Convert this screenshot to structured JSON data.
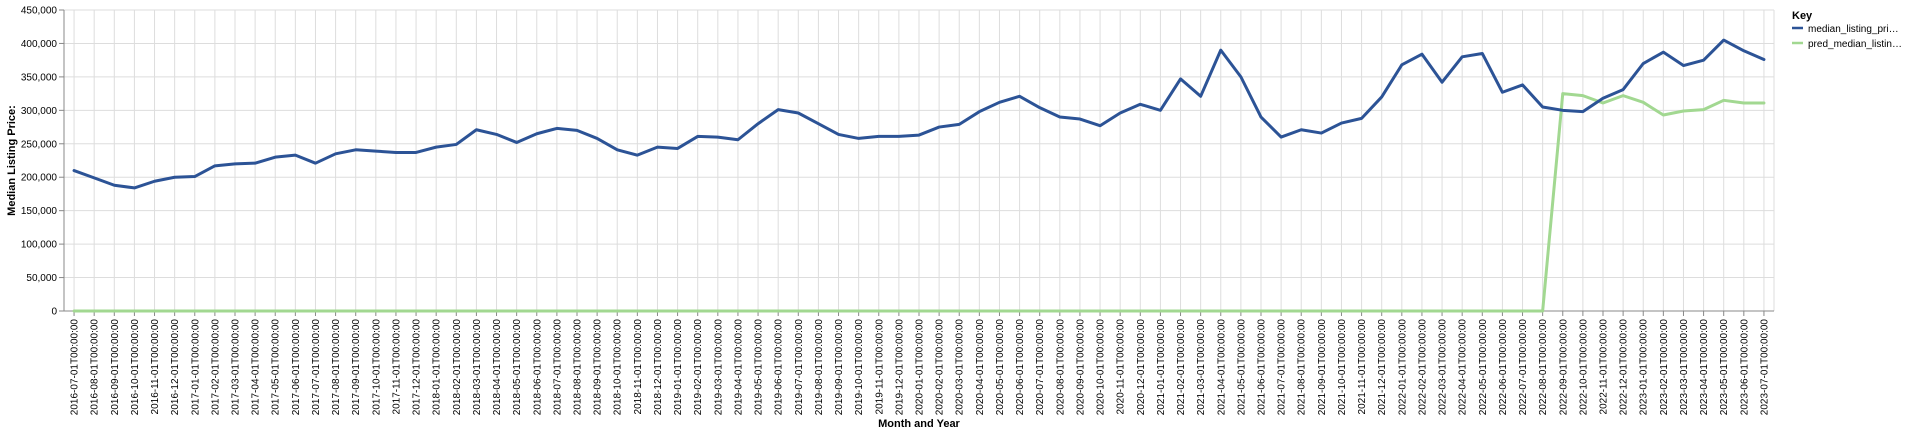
{
  "chart_data": {
    "type": "line",
    "xlabel": "Month and Year",
    "ylabel": "Median Listing Price:",
    "ylim": [
      0,
      450000
    ],
    "y_ticks": [
      "0",
      "50,000",
      "100,000",
      "150,000",
      "200,000",
      "250,000",
      "300,000",
      "350,000",
      "400,000",
      "450,000"
    ],
    "grid": true,
    "legend": {
      "title": "Key",
      "placement": "right",
      "entries": [
        "median_listing_pri…",
        "pred_median_listin…"
      ]
    },
    "x": [
      "2016-07-01T00:00:00",
      "2016-08-01T00:00:00",
      "2016-09-01T00:00:00",
      "2016-10-01T00:00:00",
      "2016-11-01T00:00:00",
      "2016-12-01T00:00:00",
      "2017-01-01T00:00:00",
      "2017-02-01T00:00:00",
      "2017-03-01T00:00:00",
      "2017-04-01T00:00:00",
      "2017-05-01T00:00:00",
      "2017-06-01T00:00:00",
      "2017-07-01T00:00:00",
      "2017-08-01T00:00:00",
      "2017-09-01T00:00:00",
      "2017-10-01T00:00:00",
      "2017-11-01T00:00:00",
      "2017-12-01T00:00:00",
      "2018-01-01T00:00:00",
      "2018-02-01T00:00:00",
      "2018-03-01T00:00:00",
      "2018-04-01T00:00:00",
      "2018-05-01T00:00:00",
      "2018-06-01T00:00:00",
      "2018-07-01T00:00:00",
      "2018-08-01T00:00:00",
      "2018-09-01T00:00:00",
      "2018-10-01T00:00:00",
      "2018-11-01T00:00:00",
      "2018-12-01T00:00:00",
      "2019-01-01T00:00:00",
      "2019-02-01T00:00:00",
      "2019-03-01T00:00:00",
      "2019-04-01T00:00:00",
      "2019-05-01T00:00:00",
      "2019-06-01T00:00:00",
      "2019-07-01T00:00:00",
      "2019-08-01T00:00:00",
      "2019-09-01T00:00:00",
      "2019-10-01T00:00:00",
      "2019-11-01T00:00:00",
      "2019-12-01T00:00:00",
      "2020-01-01T00:00:00",
      "2020-02-01T00:00:00",
      "2020-03-01T00:00:00",
      "2020-04-01T00:00:00",
      "2020-05-01T00:00:00",
      "2020-06-01T00:00:00",
      "2020-07-01T00:00:00",
      "2020-08-01T00:00:00",
      "2020-09-01T00:00:00",
      "2020-10-01T00:00:00",
      "2020-11-01T00:00:00",
      "2020-12-01T00:00:00",
      "2021-01-01T00:00:00",
      "2021-02-01T00:00:00",
      "2021-03-01T00:00:00",
      "2021-04-01T00:00:00",
      "2021-05-01T00:00:00",
      "2021-06-01T00:00:00",
      "2021-07-01T00:00:00",
      "2021-08-01T00:00:00",
      "2021-09-01T00:00:00",
      "2021-10-01T00:00:00",
      "2021-11-01T00:00:00",
      "2021-12-01T00:00:00",
      "2022-01-01T00:00:00",
      "2022-02-01T00:00:00",
      "2022-03-01T00:00:00",
      "2022-04-01T00:00:00",
      "2022-05-01T00:00:00",
      "2022-06-01T00:00:00",
      "2022-07-01T00:00:00",
      "2022-08-01T00:00:00",
      "2022-09-01T00:00:00",
      "2022-10-01T00:00:00",
      "2022-11-01T00:00:00",
      "2022-12-01T00:00:00",
      "2023-01-01T00:00:00",
      "2023-02-01T00:00:00",
      "2023-03-01T00:00:00",
      "2023-04-01T00:00:00",
      "2023-05-01T00:00:00",
      "2023-06-01T00:00:00",
      "2023-07-01T00:00:00"
    ],
    "series": [
      {
        "name": "median_listing_pri…",
        "color": "#2c5396",
        "values": [
          210000,
          199000,
          188000,
          184000,
          194000,
          200000,
          201000,
          217000,
          220000,
          221000,
          230000,
          233000,
          221000,
          235000,
          241000,
          239000,
          237000,
          237000,
          245000,
          249000,
          271000,
          264000,
          252000,
          265000,
          273000,
          270000,
          258000,
          241000,
          233000,
          245000,
          243000,
          261000,
          260000,
          256000,
          280000,
          301000,
          296000,
          280000,
          264000,
          258000,
          261000,
          261000,
          263000,
          275000,
          279000,
          298000,
          312000,
          321000,
          304000,
          290000,
          287000,
          277000,
          296000,
          309000,
          300000,
          347000,
          321000,
          390000,
          350000,
          290000,
          260000,
          271000,
          266000,
          281000,
          288000,
          320000,
          368000,
          384000,
          342000,
          380000,
          385000,
          327000,
          338000,
          305000,
          300000,
          298000,
          318000,
          331000,
          370000,
          387000,
          367000,
          375000,
          405000,
          389000,
          376000
        ]
      },
      {
        "name": "pred_median_listin…",
        "color": "#a2d891",
        "values": [
          0,
          0,
          0,
          0,
          0,
          0,
          0,
          0,
          0,
          0,
          0,
          0,
          0,
          0,
          0,
          0,
          0,
          0,
          0,
          0,
          0,
          0,
          0,
          0,
          0,
          0,
          0,
          0,
          0,
          0,
          0,
          0,
          0,
          0,
          0,
          0,
          0,
          0,
          0,
          0,
          0,
          0,
          0,
          0,
          0,
          0,
          0,
          0,
          0,
          0,
          0,
          0,
          0,
          0,
          0,
          0,
          0,
          0,
          0,
          0,
          0,
          0,
          0,
          0,
          0,
          0,
          0,
          0,
          0,
          0,
          0,
          0,
          0,
          0,
          325000,
          322000,
          311000,
          322000,
          312000,
          293000,
          299000,
          301000,
          315000,
          311000,
          311000
        ]
      }
    ]
  }
}
